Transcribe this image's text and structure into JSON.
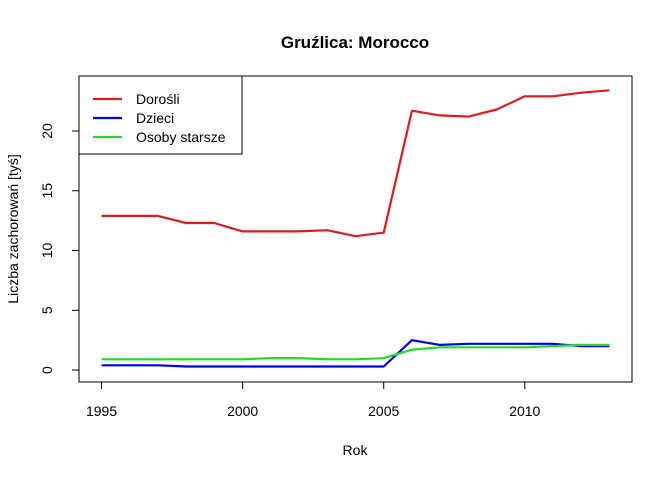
{
  "chart_data": {
    "type": "line",
    "title": "Gruźlica: Morocco",
    "xlabel": "Rok",
    "ylabel": "Liczba zachorowań [tyś]",
    "xlim": [
      1994.2,
      2013.8
    ],
    "ylim": [
      -1.0,
      24.6
    ],
    "x_ticks": [
      1995,
      2000,
      2005,
      2010
    ],
    "y_ticks": [
      0,
      5,
      10,
      15,
      20
    ],
    "grid": false,
    "legend_position": "top-left",
    "x": [
      1995,
      1996,
      1997,
      1998,
      1999,
      2000,
      2001,
      2002,
      2003,
      2004,
      2005,
      2006,
      2007,
      2008,
      2009,
      2010,
      2011,
      2012,
      2013
    ],
    "series": [
      {
        "name": "Dorośli",
        "color": "#e31a1c",
        "values": [
          12.9,
          12.9,
          12.9,
          12.3,
          12.3,
          11.6,
          11.6,
          11.6,
          11.7,
          11.2,
          11.5,
          21.7,
          21.3,
          21.2,
          21.8,
          22.9,
          22.9,
          23.2,
          23.4
        ]
      },
      {
        "name": "Dzieci",
        "color": "#0000ee",
        "values": [
          0.4,
          0.4,
          0.4,
          0.3,
          0.3,
          0.3,
          0.3,
          0.3,
          0.3,
          0.3,
          0.3,
          2.5,
          2.1,
          2.2,
          2.2,
          2.2,
          2.2,
          2.0,
          2.0
        ]
      },
      {
        "name": "Osoby starsze",
        "color": "#22dd22",
        "values": [
          0.9,
          0.9,
          0.9,
          0.9,
          0.9,
          0.9,
          1.0,
          1.0,
          0.9,
          0.9,
          1.0,
          1.7,
          1.9,
          1.9,
          1.9,
          1.9,
          2.0,
          2.1,
          2.1
        ]
      }
    ]
  }
}
